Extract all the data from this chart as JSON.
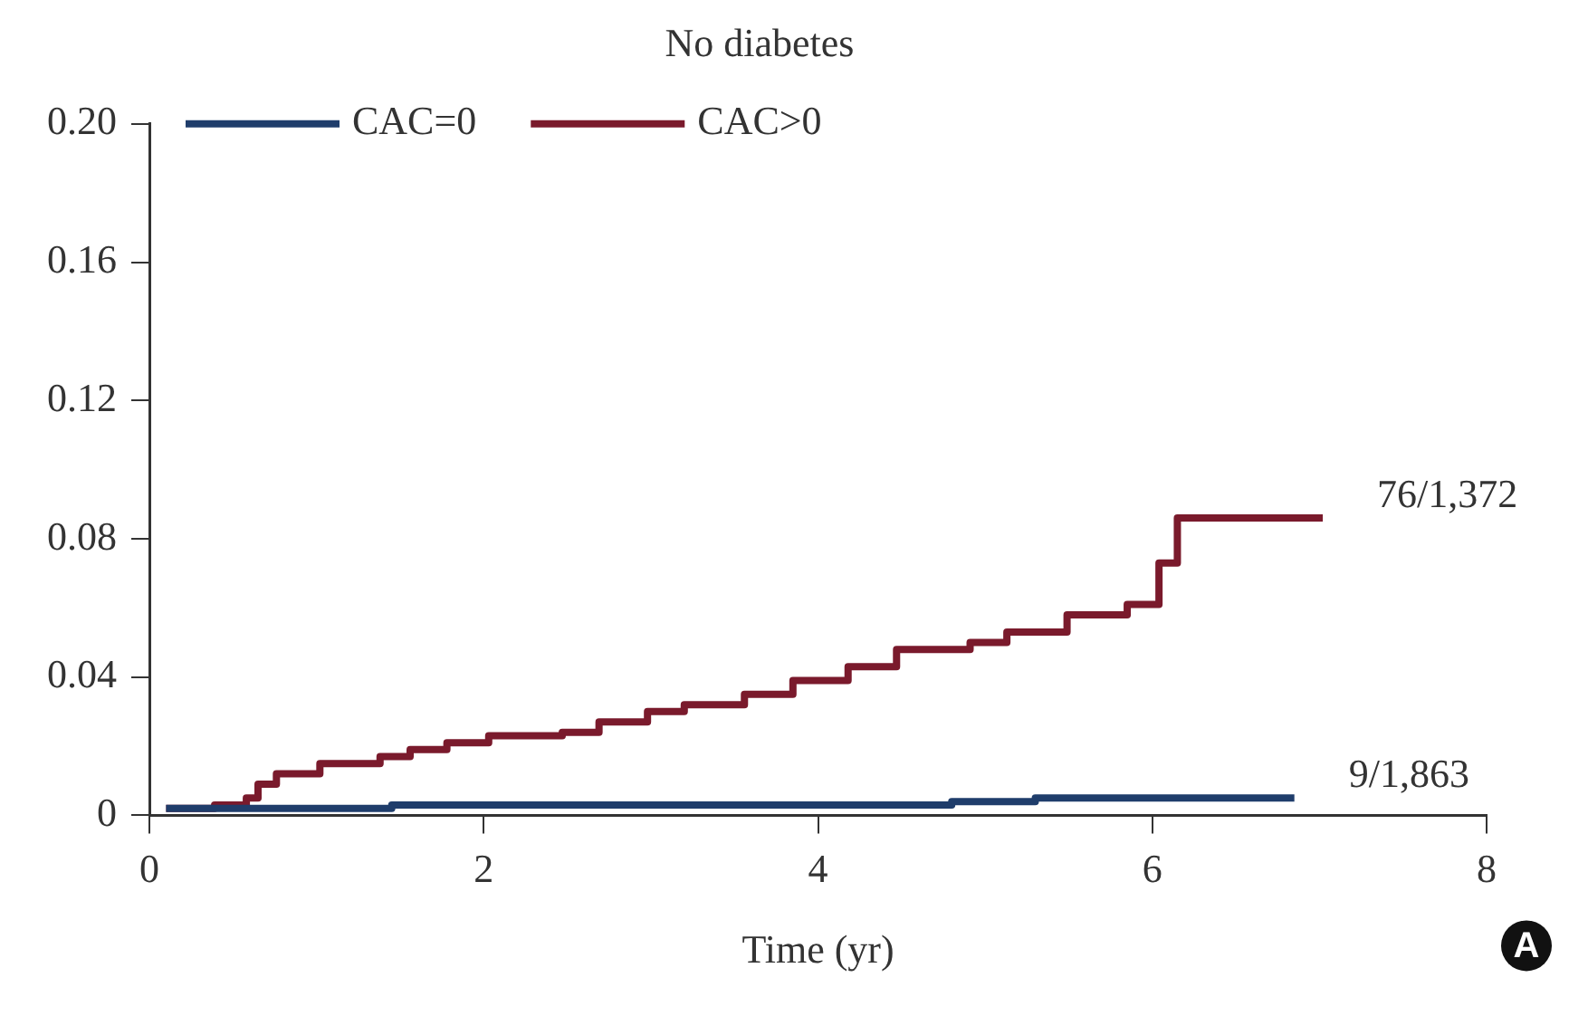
{
  "chart_data": {
    "type": "step",
    "title": "No diabetes",
    "xlabel": "Time (yr)",
    "xlim": [
      0,
      8
    ],
    "xticks": [
      0,
      2,
      4,
      6,
      8
    ],
    "ylim": [
      0,
      0.2
    ],
    "yticks": [
      0,
      {
        "value": 0.04,
        "label": "0.04"
      },
      {
        "value": 0.08,
        "label": "0.08"
      },
      {
        "value": 0.12,
        "label": "0.12"
      },
      {
        "value": 0.16,
        "label": "0.16"
      },
      {
        "value": 0.2,
        "label": "0.20"
      }
    ],
    "grid": false,
    "legend": "top left",
    "line_style": "solid",
    "marker": "none",
    "series": [
      {
        "name": "CAC=0",
        "color": "#1f3d6b",
        "x": [
          0.1,
          1.45,
          4.8,
          5.3,
          6.85
        ],
        "values": [
          0.002,
          0.003,
          0.004,
          0.005,
          0.005
        ]
      },
      {
        "name": "CAC>0",
        "color": "#7a1a2c",
        "x": [
          0.1,
          0.39,
          0.58,
          0.65,
          0.76,
          1.02,
          1.38,
          1.56,
          1.78,
          2.03,
          2.47,
          2.69,
          2.98,
          3.2,
          3.56,
          3.85,
          4.18,
          4.47,
          4.91,
          5.13,
          5.49,
          5.85,
          6.04,
          6.15,
          7.02
        ],
        "values": [
          0.002,
          0.003,
          0.005,
          0.009,
          0.012,
          0.015,
          0.017,
          0.019,
          0.021,
          0.023,
          0.024,
          0.027,
          0.03,
          0.032,
          0.035,
          0.039,
          0.043,
          0.048,
          0.05,
          0.053,
          0.058,
          0.061,
          0.073,
          0.086,
          0.086
        ]
      }
    ],
    "annotations": [
      {
        "text": "76/1,372",
        "x": 7.02,
        "y": 0.086
      },
      {
        "text": "9/1,863",
        "x": 6.85,
        "y": 0.005
      },
      "A"
    ]
  }
}
